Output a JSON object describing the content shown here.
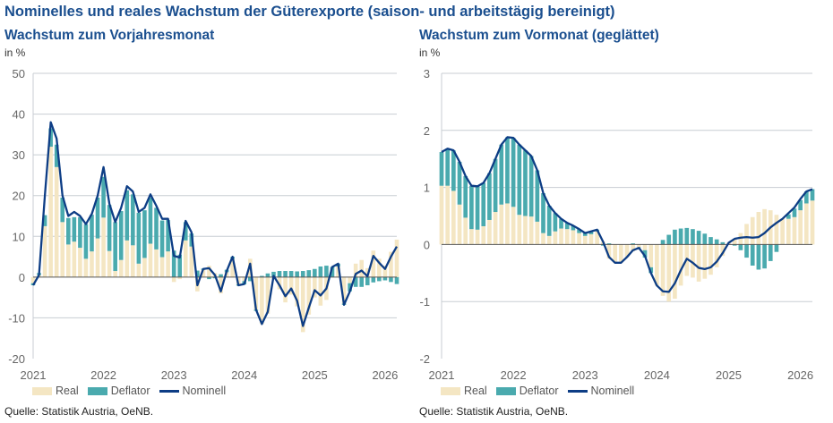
{
  "title": "Nominelles und reales Wachstum der Güterexporte (saison- und arbeitstägig bereinigt)",
  "source": "Quelle: Statistik Austria, OeNB.",
  "colors": {
    "real": "#f4e6c3",
    "deflator": "#4aaaae",
    "nominal": "#0d3d85",
    "grid": "#c8cdd3",
    "title": "#1b4f8f"
  },
  "chart_data": [
    {
      "type": "bar",
      "title": "Wachstum zum Vorjahresmonat",
      "ylabel": "in %",
      "ylim": [
        -20,
        50
      ],
      "yticks": [
        "-20",
        "-10",
        "0",
        "10",
        "20",
        "30",
        "40",
        "50"
      ],
      "yticks_values": [
        -20,
        -10,
        0,
        10,
        20,
        30,
        40,
        50
      ],
      "xticks": [
        "2021",
        "2022",
        "2023",
        "2024",
        "2025",
        "2026"
      ],
      "x_start": "2021-01",
      "x_end": "2026-03",
      "frequency": "monthly",
      "stacked": true,
      "grid": true,
      "legend": "bottom-left",
      "legend_entries": [
        "Real",
        "Deflator",
        "Nominell"
      ],
      "series": [
        {
          "name": "Real",
          "kind": "bar",
          "values": [
            -1.5,
            0.5,
            12.5,
            32,
            27,
            13.5,
            8,
            8.7,
            7.2,
            4.5,
            6.3,
            9.5,
            14.6,
            6.4,
            1.5,
            4.2,
            9,
            7.8,
            3.3,
            4.7,
            8.2,
            6.8,
            4.9,
            6.3,
            -1.2,
            -0.5,
            9,
            7.5,
            -3.5,
            1.8,
            2.8,
            1,
            -4,
            1.2,
            4.5,
            -1.8,
            -1,
            4.5,
            -8,
            -11.5,
            -9,
            -0.5,
            -3,
            -6.2,
            -4.3,
            -7.2,
            -13.5,
            -9.2,
            -5,
            -7,
            -5.6,
            0,
            2.6,
            -6.5,
            -1.5,
            3.3,
            4.2,
            2.2,
            6.5,
            4.5,
            2.8,
            6.2,
            9.2
          ]
        },
        {
          "name": "Deflator",
          "kind": "bar",
          "values": [
            -0.5,
            0.5,
            2.7,
            4.5,
            5.5,
            6,
            6.5,
            6,
            7.5,
            8.5,
            9,
            10,
            10,
            11.3,
            12,
            12,
            12.3,
            12.5,
            12.5,
            11.7,
            11.3,
            10.2,
            9,
            7.7,
            6.5,
            5.5,
            4.5,
            3.2,
            1.6,
            0.3,
            -0.5,
            -0.3,
            0.7,
            0.6,
            0.5,
            -0.3,
            -0.8,
            -1,
            -0.3,
            0.3,
            0.9,
            1.3,
            1.5,
            1.5,
            1.5,
            1.4,
            1.5,
            1.7,
            2,
            2.6,
            2.8,
            2.5,
            0.7,
            -0.3,
            -2,
            -2.4,
            -2.4,
            -2,
            -1.3,
            -1,
            -0.8,
            -1.2,
            -1.7
          ]
        },
        {
          "name": "Nominell",
          "kind": "line",
          "values": [
            -2,
            0.5,
            20,
            38,
            34,
            20,
            15,
            16,
            15,
            13,
            15.5,
            20,
            27,
            18,
            13.5,
            17,
            22.3,
            21,
            16,
            17,
            20.3,
            17.5,
            14.3,
            14.3,
            5.2,
            4.8,
            13.8,
            11,
            -2,
            2,
            2.2,
            0.5,
            -3.5,
            1.5,
            5,
            -2,
            -1.7,
            3.3,
            -8,
            -11.5,
            -8.5,
            0.3,
            -2,
            -4.7,
            -2.8,
            -5.8,
            -12,
            -7.5,
            -3.2,
            -4.5,
            -2.8,
            2.5,
            3.3,
            -6.8,
            -3.5,
            0.8,
            1.6,
            0.2,
            5.2,
            3.5,
            2,
            5,
            7.5
          ]
        }
      ]
    },
    {
      "type": "bar",
      "title": "Wachstum zum Vormonat (geglättet)",
      "ylabel": "in %",
      "ylim": [
        -2,
        3
      ],
      "yticks": [
        "-2",
        "-1",
        "0",
        "1",
        "2",
        "3"
      ],
      "yticks_values": [
        -2,
        -1,
        0,
        1,
        2,
        3
      ],
      "xticks": [
        "2021",
        "2022",
        "2023",
        "2024",
        "2025",
        "2026"
      ],
      "x_start": "2021-01",
      "x_end": "2026-03",
      "frequency": "monthly",
      "stacked": true,
      "grid": true,
      "legend": "bottom-left",
      "legend_entries": [
        "Real",
        "Deflator",
        "Nominell"
      ],
      "series": [
        {
          "name": "Real",
          "kind": "bar",
          "values": [
            1.03,
            1.03,
            0.94,
            0.7,
            0.47,
            0.27,
            0.26,
            0.32,
            0.43,
            0.57,
            0.7,
            0.72,
            0.66,
            0.52,
            0.5,
            0.49,
            0.4,
            0.2,
            0.15,
            0.23,
            0.28,
            0.27,
            0.25,
            0.2,
            0.15,
            0.18,
            0.23,
            0.05,
            -0.25,
            -0.32,
            -0.32,
            -0.22,
            -0.12,
            -0.05,
            -0.1,
            -0.4,
            -0.72,
            -0.9,
            -1.0,
            -0.95,
            -0.72,
            -0.55,
            -0.58,
            -0.65,
            -0.6,
            -0.53,
            -0.4,
            -0.2,
            0.03,
            0.1,
            0.2,
            0.36,
            0.48,
            0.57,
            0.62,
            0.6,
            0.52,
            0.45,
            0.45,
            0.48,
            0.6,
            0.72,
            0.77
          ]
        },
        {
          "name": "Deflator",
          "kind": "bar",
          "values": [
            0.59,
            0.65,
            0.71,
            0.75,
            0.73,
            0.76,
            0.76,
            0.76,
            0.82,
            0.93,
            1.05,
            1.16,
            1.21,
            1.23,
            1.15,
            1.06,
            0.9,
            0.7,
            0.53,
            0.32,
            0.17,
            0.11,
            0.08,
            0.07,
            0.05,
            0.05,
            0.03,
            -0.02,
            0.02,
            0,
            0,
            0,
            0.02,
            -0.01,
            -0.13,
            -0.1,
            0,
            0.08,
            0.17,
            0.26,
            0.28,
            0.29,
            0.27,
            0.24,
            0.19,
            0.13,
            0.09,
            0.04,
            0,
            -0.02,
            -0.1,
            -0.23,
            -0.37,
            -0.44,
            -0.42,
            -0.29,
            -0.13,
            0,
            0.08,
            0.15,
            0.18,
            0.21,
            0.2
          ]
        },
        {
          "name": "Nominell",
          "kind": "line",
          "values": [
            1.62,
            1.68,
            1.65,
            1.45,
            1.2,
            1.03,
            1.02,
            1.08,
            1.25,
            1.5,
            1.75,
            1.88,
            1.87,
            1.75,
            1.65,
            1.55,
            1.3,
            0.9,
            0.68,
            0.55,
            0.45,
            0.38,
            0.33,
            0.27,
            0.2,
            0.23,
            0.26,
            0.05,
            -0.22,
            -0.32,
            -0.32,
            -0.22,
            -0.1,
            -0.06,
            -0.2,
            -0.5,
            -0.72,
            -0.82,
            -0.83,
            -0.68,
            -0.45,
            -0.25,
            -0.32,
            -0.41,
            -0.43,
            -0.4,
            -0.3,
            -0.15,
            0.03,
            0.1,
            0.12,
            0.13,
            0.12,
            0.13,
            0.2,
            0.3,
            0.38,
            0.45,
            0.55,
            0.65,
            0.8,
            0.93,
            0.97
          ]
        }
      ]
    }
  ]
}
